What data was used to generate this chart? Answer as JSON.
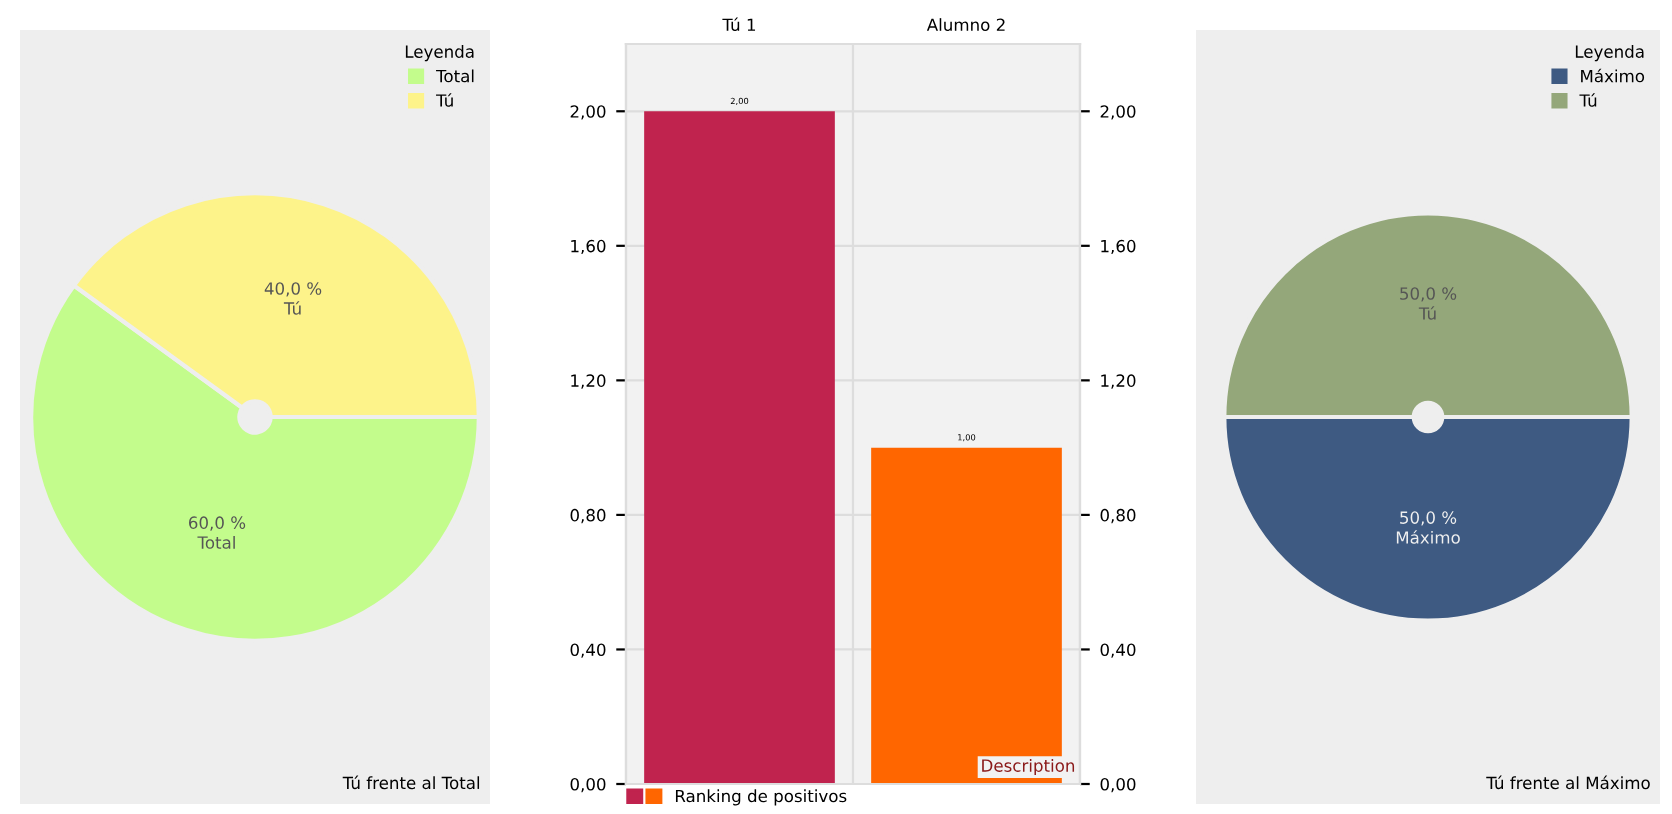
{
  "chart_data": [
    {
      "type": "pie",
      "categories": [
        "Total",
        "Tú"
      ],
      "values": [
        60,
        40
      ],
      "colors": [
        "#c3fc8c",
        "#fdf38a"
      ],
      "value_labels": [
        "60,0 %\nTotal",
        "40,0 %\nTú"
      ],
      "legend": "top right",
      "legend_title": "Leyenda",
      "annotations": [
        "Tú frente al Total"
      ]
    },
    {
      "type": "bar",
      "categories": [
        "Tú 1",
        "Alumno 2"
      ],
      "series": [
        {
          "name": "Ranking de positivos",
          "colors": [
            "#c0234e",
            "#ff6600"
          ],
          "values": [
            2.0,
            1.0
          ],
          "value_labels": [
            "2,00",
            "1,00"
          ]
        }
      ],
      "ylim": [
        0,
        2.2
      ],
      "yticks": [
        {
          "value": 0,
          "label": "0,00"
        },
        {
          "value": 0.4,
          "label": "0,40"
        },
        {
          "value": 0.8,
          "label": "0,80"
        },
        {
          "value": 1.2,
          "label": "1,20"
        },
        {
          "value": 1.6,
          "label": "1,60"
        },
        {
          "value": 2.0,
          "label": "2,00"
        }
      ],
      "y2lim": [
        0,
        2.2
      ],
      "y2ticks": [
        {
          "value": 0,
          "label": "0,00"
        },
        {
          "value": 0.4,
          "label": "0,40"
        },
        {
          "value": 0.8,
          "label": "0,80"
        },
        {
          "value": 1.2,
          "label": "1,20"
        },
        {
          "value": 1.6,
          "label": "1,60"
        },
        {
          "value": 2.0,
          "label": "2,00"
        }
      ],
      "grid": true,
      "legend": "bottom",
      "annotations": [
        "Description"
      ]
    },
    {
      "type": "pie",
      "categories": [
        "Máximo",
        "Tú"
      ],
      "values": [
        50,
        50
      ],
      "colors": [
        "#3e5a82",
        "#94a77a"
      ],
      "value_labels": [
        "50,0 %\nMáximo",
        "50,0 %\nTú"
      ],
      "legend": "top right",
      "legend_title": "Leyenda",
      "annotations": [
        "Tú frente al Máximo"
      ]
    }
  ]
}
